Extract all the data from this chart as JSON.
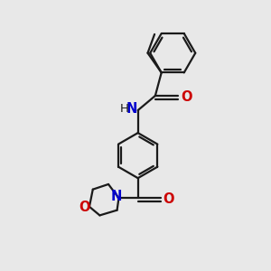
{
  "bg_color": "#e8e8e8",
  "bond_color": "#1a1a1a",
  "N_color": "#0000cd",
  "O_color": "#cc0000",
  "line_width": 1.6,
  "font_size": 10.5,
  "xlim": [
    0,
    10
  ],
  "ylim": [
    0,
    10
  ]
}
